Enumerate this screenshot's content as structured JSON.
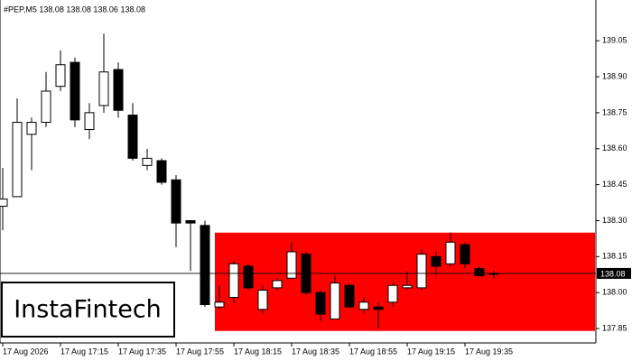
{
  "chart_data": {
    "type": "candlestick",
    "title": "#PEP,M5  138.08 138.08 138.06 138.08",
    "logo": "InstaFintech",
    "categories": [
      "17 Aug 2026",
      null,
      null,
      null,
      "17 Aug 17:15",
      null,
      null,
      null,
      "17 Aug 17:35",
      null,
      null,
      null,
      "17 Aug 17:55",
      null,
      null,
      null,
      "17 Aug 18:15",
      null,
      null,
      null,
      "17 Aug 18:35",
      null,
      null,
      null,
      "17 Aug 18:55",
      null,
      null,
      null,
      "17 Aug 19:15",
      null,
      null,
      null,
      "17 Aug 19:35",
      null,
      null
    ],
    "open": [
      138.36,
      138.4,
      138.66,
      138.71,
      138.86,
      138.96,
      138.68,
      138.78,
      138.93,
      138.74,
      138.53,
      138.55,
      138.47,
      138.3,
      138.28,
      137.94,
      137.98,
      138.11,
      137.93,
      138.02,
      138.06,
      138.16,
      138.0,
      137.89,
      138.03,
      137.93,
      137.94,
      137.96,
      138.02,
      138.02,
      138.15,
      138.12,
      138.2,
      138.1,
      138.08
    ],
    "high": [
      138.52,
      138.81,
      138.73,
      138.92,
      139.01,
      138.98,
      138.79,
      139.08,
      138.96,
      138.79,
      138.6,
      138.56,
      138.49,
      138.3,
      138.3,
      138.03,
      138.13,
      138.12,
      138.03,
      138.06,
      138.21,
      138.17,
      138.01,
      138.07,
      138.04,
      137.98,
      137.96,
      138.04,
      138.09,
      138.18,
      138.17,
      138.25,
      138.21,
      138.11,
      138.09
    ],
    "low": [
      138.26,
      138.4,
      138.51,
      138.69,
      138.84,
      138.69,
      138.64,
      138.75,
      138.73,
      138.55,
      138.51,
      138.45,
      138.19,
      138.09,
      137.94,
      137.93,
      137.96,
      138.01,
      137.91,
      138.01,
      138.06,
      137.99,
      137.88,
      137.89,
      137.94,
      137.91,
      137.85,
      137.94,
      138.01,
      138.01,
      138.07,
      138.11,
      138.1,
      138.07,
      138.06
    ],
    "close": [
      138.39,
      138.71,
      138.71,
      138.84,
      138.95,
      138.72,
      138.75,
      138.92,
      138.76,
      138.56,
      138.56,
      138.46,
      138.29,
      138.29,
      137.95,
      137.96,
      138.12,
      138.02,
      138.01,
      138.05,
      138.17,
      138.0,
      137.91,
      138.04,
      137.94,
      137.96,
      137.93,
      138.03,
      138.03,
      138.16,
      138.11,
      138.21,
      138.12,
      138.07,
      138.08
    ],
    "zone": {
      "top": 138.25,
      "bottom": 137.84,
      "color": "#ff0000"
    },
    "current_price": 138.08,
    "ylim": [
      137.79,
      139.22
    ],
    "yticks": [
      139.05,
      {
        "value": 138.9,
        "label": "138.90"
      },
      138.75,
      {
        "value": 138.6,
        "label": "138.60"
      },
      138.45,
      {
        "value": 138.3,
        "label": "138.30"
      },
      138.15,
      {
        "value": 138.0,
        "label": "138.00"
      },
      137.85
    ]
  }
}
